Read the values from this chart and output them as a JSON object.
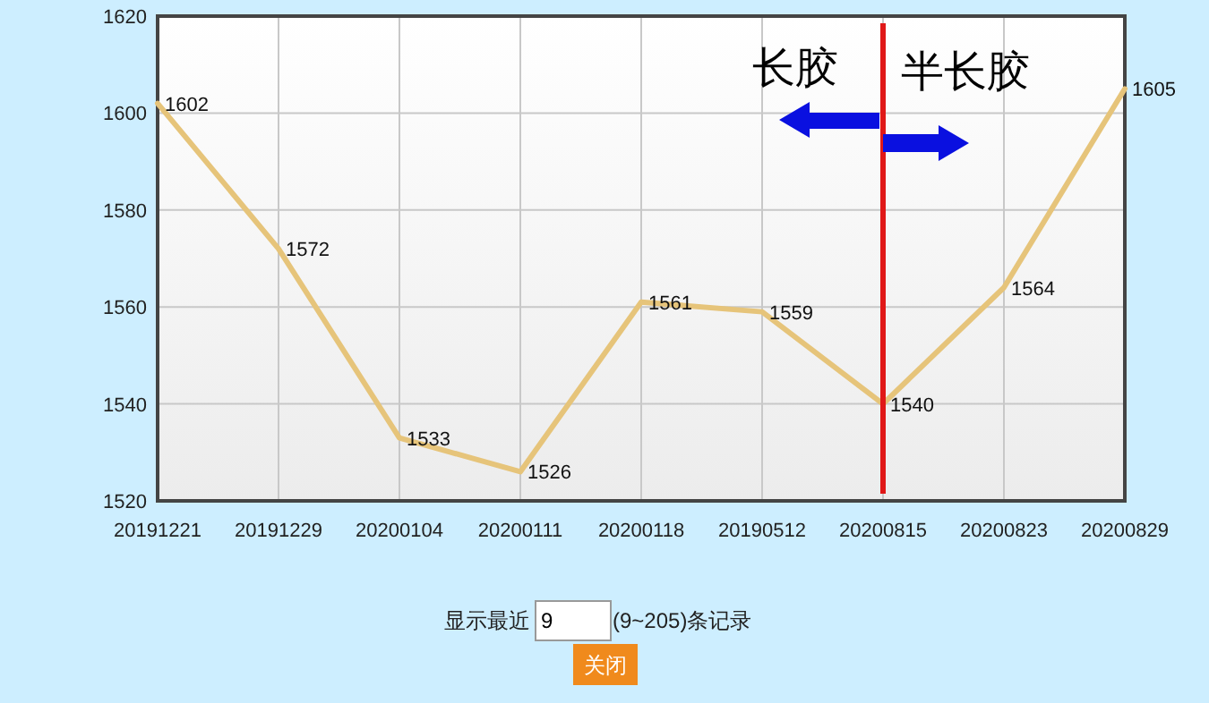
{
  "chart_data": {
    "type": "line",
    "categories": [
      "20191221",
      "20191229",
      "20200104",
      "20200111",
      "20200118",
      "20190512",
      "20200815",
      "20200823",
      "20200829"
    ],
    "series": [
      {
        "color": "#e6c47a",
        "values": [
          1602,
          1572,
          1533,
          1526,
          1561,
          1559,
          1540,
          1564,
          1605
        ]
      }
    ],
    "data_labels": true,
    "ylim": [
      1520,
      1620
    ],
    "yticks": [
      1520,
      1540,
      1560,
      1580,
      1600,
      1620
    ],
    "grid": true,
    "marker": "none",
    "line_style": "solid",
    "ref_lines": [
      {
        "axis": "x",
        "value": "20200815",
        "color": "#e01818"
      }
    ],
    "annotations": [
      "长胶",
      "半长胶",
      "显示最近",
      "9",
      "(9~205)条记录",
      "关闭"
    ]
  }
}
